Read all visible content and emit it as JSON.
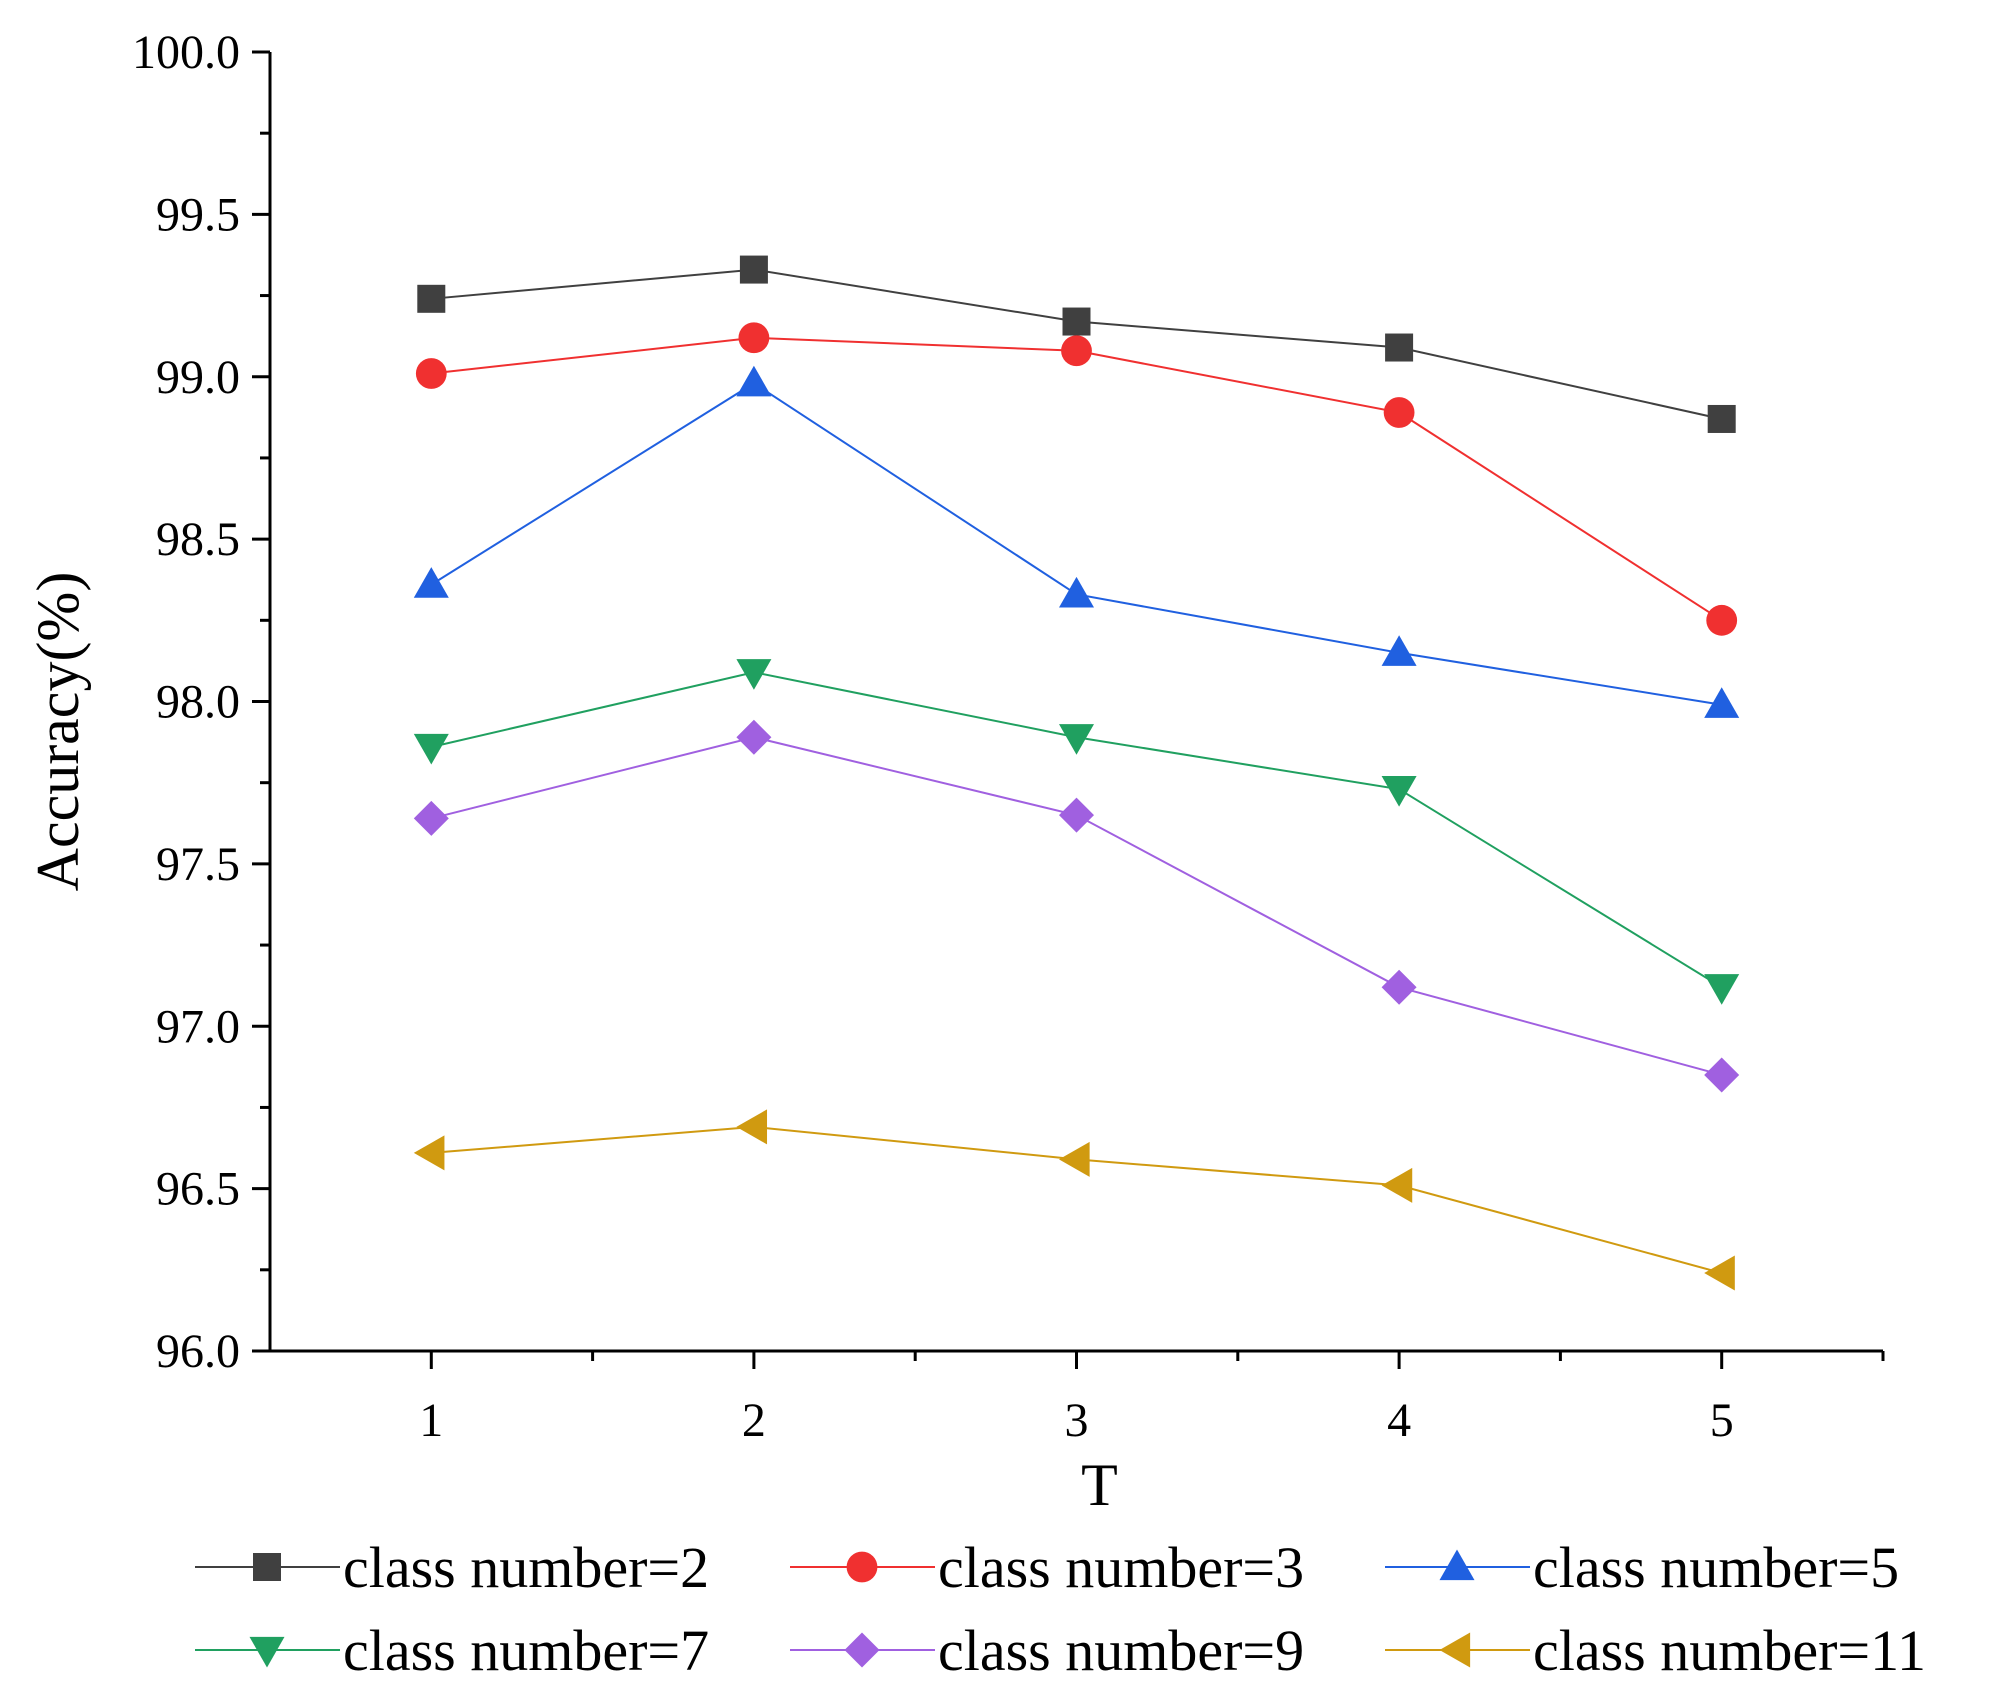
{
  "chart_data": {
    "type": "line",
    "title": "",
    "xlabel": "T",
    "ylabel": "Accuracy(%)",
    "x": [
      1,
      2,
      3,
      4,
      5
    ],
    "xlim": [
      0.5,
      5.5
    ],
    "ylim": [
      96.0,
      100.0
    ],
    "x_ticks": [
      "1",
      "2",
      "3",
      "4",
      "5"
    ],
    "y_ticks": [
      "96.0",
      "96.5",
      "97.0",
      "97.5",
      "98.0",
      "98.5",
      "99.0",
      "99.5",
      "100.0"
    ],
    "legend_position": "bottom",
    "grid": false,
    "series": [
      {
        "name": "class number=2",
        "color": "#404040",
        "marker": "square",
        "values": [
          99.24,
          99.33,
          99.17,
          99.09,
          98.87
        ]
      },
      {
        "name": "class number=3",
        "color": "#f03030",
        "marker": "circle",
        "values": [
          99.01,
          99.12,
          99.08,
          98.89,
          98.25
        ]
      },
      {
        "name": "class number=5",
        "color": "#2060e0",
        "marker": "triangle-up",
        "values": [
          98.36,
          98.98,
          98.33,
          98.15,
          97.99
        ]
      },
      {
        "name": "class number=7",
        "color": "#20a060",
        "marker": "triangle-down",
        "values": [
          97.86,
          98.09,
          97.89,
          97.73,
          97.12
        ]
      },
      {
        "name": "class number=9",
        "color": "#a060e0",
        "marker": "diamond",
        "values": [
          97.64,
          97.89,
          97.65,
          97.12,
          96.85
        ]
      },
      {
        "name": "class number=11",
        "color": "#d09a10",
        "marker": "triangle-left",
        "values": [
          96.61,
          96.69,
          96.59,
          96.51,
          96.24
        ]
      }
    ]
  }
}
